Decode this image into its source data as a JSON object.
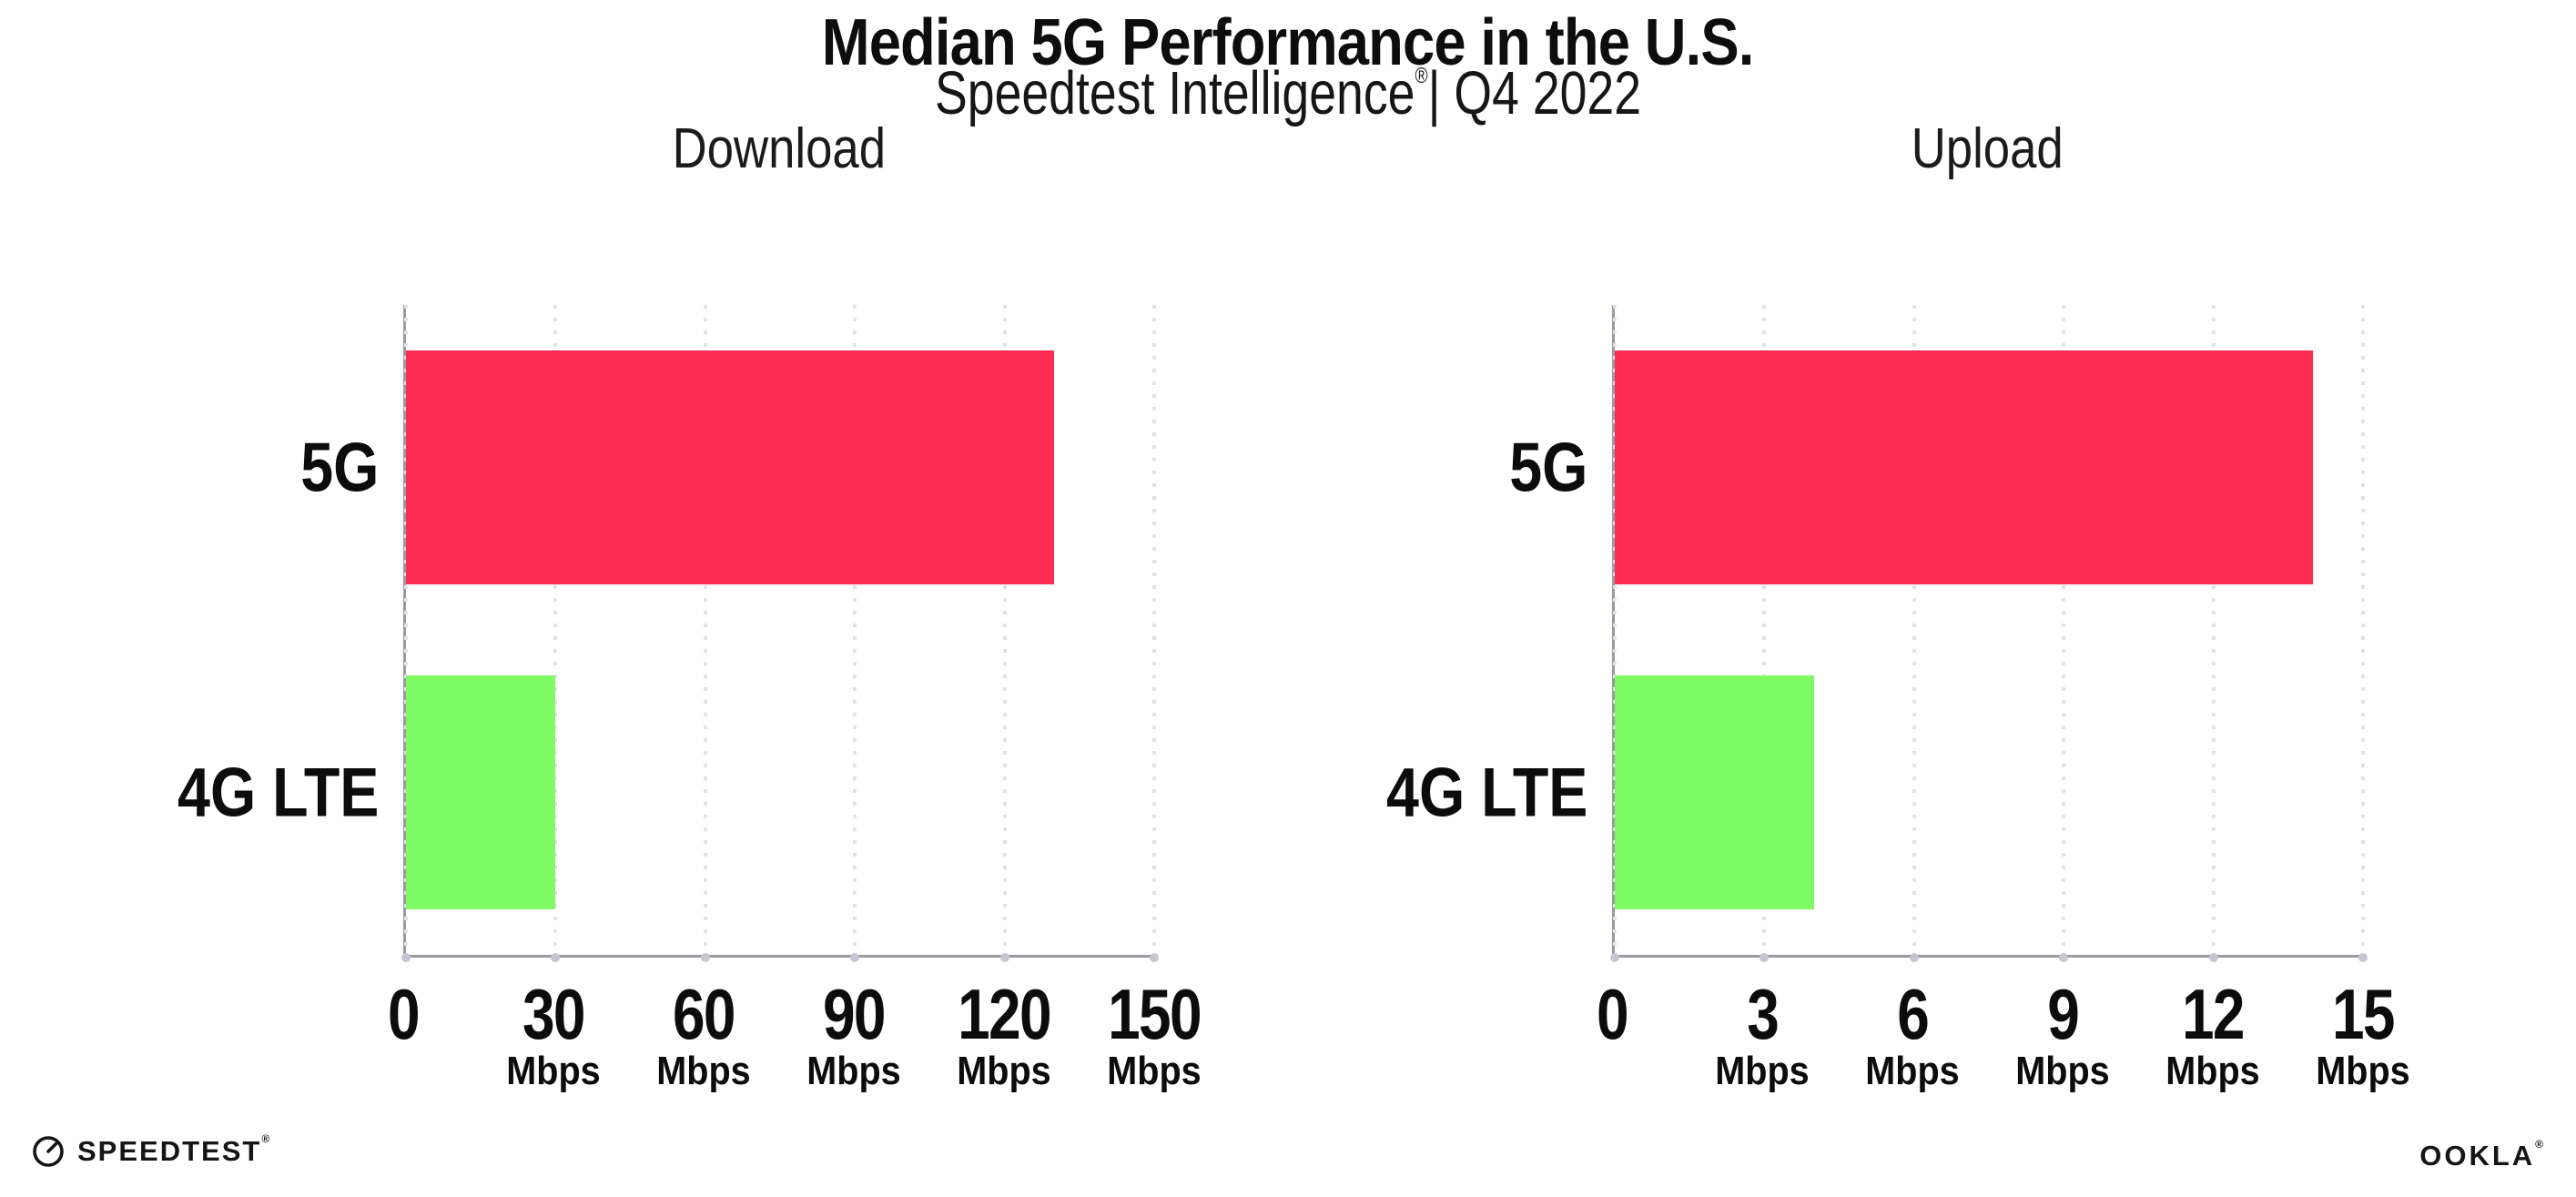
{
  "header": {
    "title": "Median 5G Performance in the U.S.",
    "subtitle_brand": "Speedtest Intelligence",
    "subtitle_reg": "®",
    "subtitle_rest": " | Q4 2022"
  },
  "chart_data": [
    {
      "type": "bar",
      "orientation": "horizontal",
      "title": "Download",
      "categories": [
        "5G",
        "4G LTE"
      ],
      "values": [
        130,
        30
      ],
      "bar_colors": [
        "#ff2d55",
        "#7dfa64"
      ],
      "unit": "Mbps",
      "xlim": [
        0,
        150
      ],
      "xticks": [
        0,
        30,
        60,
        90,
        120,
        150
      ],
      "grid": true,
      "legend": "none"
    },
    {
      "type": "bar",
      "orientation": "horizontal",
      "title": "Upload",
      "categories": [
        "5G",
        "4G LTE"
      ],
      "values": [
        14,
        4
      ],
      "bar_colors": [
        "#ff2d55",
        "#7dfa64"
      ],
      "unit": "Mbps",
      "xlim": [
        0,
        15
      ],
      "xticks": [
        0,
        3,
        6,
        9,
        12,
        15
      ],
      "grid": true,
      "legend": "none"
    }
  ],
  "colors": {
    "bar_5g": "#ff2d55",
    "bar_4g_lte": "#7dfa64",
    "axis": "#9a9aa0",
    "gridline": "#e1e1eb"
  },
  "footer": {
    "speedtest_label": "SPEEDTEST",
    "speedtest_mark": "®",
    "ookla_label": "OOKLA",
    "ookla_mark": "®",
    "speedtest_icon": "gauge-icon"
  }
}
